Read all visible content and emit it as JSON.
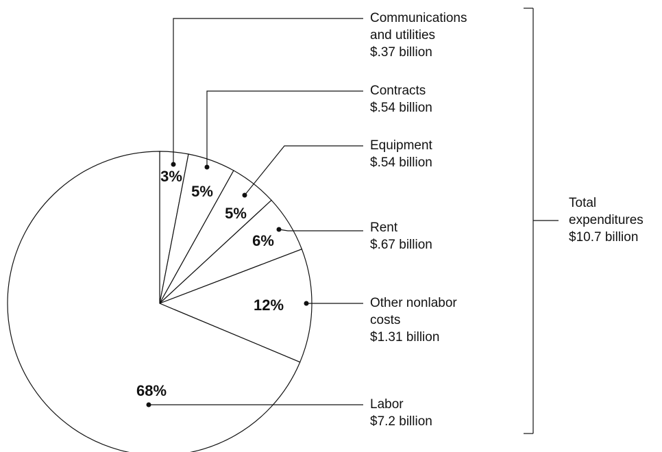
{
  "chart_data": {
    "type": "pie",
    "categories": [
      "Communications and utilities",
      "Contracts",
      "Equipment",
      "Rent",
      "Other nonlabor costs",
      "Labor"
    ],
    "values": [
      3,
      5,
      5,
      6,
      12,
      68
    ],
    "amount_labels": [
      "$.37 billion",
      "$.54 billion",
      "$.54 billion",
      "$.67 billion",
      "$1.31 billion",
      "$7.2 billion"
    ],
    "total_label": "Total expenditures",
    "total_amount": "$10.7 billion",
    "color": "#ffffff"
  }
}
